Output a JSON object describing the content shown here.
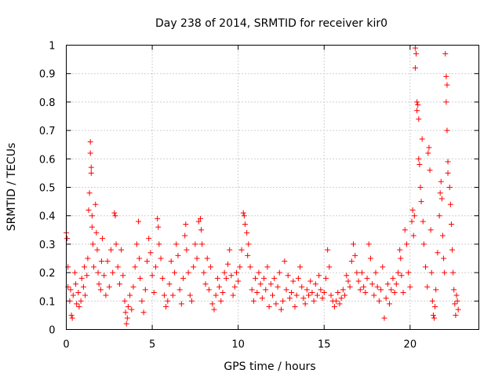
{
  "chart_data": {
    "type": "scatter",
    "title": "Day 238 of 2014, SRMTID for receiver kir0",
    "xlabel": "GPS time / hours",
    "ylabel": "SRMTID / TECUs",
    "xlim": [
      0,
      24
    ],
    "ylim": [
      0,
      1
    ],
    "x_ticks": [
      0,
      5,
      10,
      15,
      20
    ],
    "x_tick_labels": [
      "0",
      "5",
      "10",
      "15",
      "20"
    ],
    "y_ticks": [
      0,
      0.1,
      0.2,
      0.3,
      0.4,
      0.5,
      0.6,
      0.7,
      0.8,
      0.9,
      1
    ],
    "y_tick_labels": [
      "0",
      "0.1",
      "0.2",
      "0.3",
      "0.4",
      "0.5",
      "0.6",
      "0.7",
      "0.8",
      "0.9",
      "1"
    ],
    "grid": true,
    "marker": "+",
    "marker_color": "#ff0000",
    "series": [
      {
        "name": "SRMTID",
        "points": [
          [
            0.0,
            0.34
          ],
          [
            0.05,
            0.32
          ],
          [
            0.1,
            0.22
          ],
          [
            0.1,
            0.15
          ],
          [
            0.2,
            0.1
          ],
          [
            0.25,
            0.14
          ],
          [
            0.3,
            0.05
          ],
          [
            0.35,
            0.04
          ],
          [
            0.4,
            0.12
          ],
          [
            0.5,
            0.2
          ],
          [
            0.55,
            0.16
          ],
          [
            0.6,
            0.09
          ],
          [
            0.7,
            0.13
          ],
          [
            0.75,
            0.08
          ],
          [
            0.85,
            0.1
          ],
          [
            0.9,
            0.18
          ],
          [
            1.0,
            0.15
          ],
          [
            1.05,
            0.22
          ],
          [
            1.1,
            0.12
          ],
          [
            1.2,
            0.19
          ],
          [
            1.25,
            0.25
          ],
          [
            1.3,
            0.42
          ],
          [
            1.35,
            0.48
          ],
          [
            1.4,
            0.66
          ],
          [
            1.4,
            0.62
          ],
          [
            1.45,
            0.57
          ],
          [
            1.45,
            0.55
          ],
          [
            1.5,
            0.4
          ],
          [
            1.5,
            0.36
          ],
          [
            1.55,
            0.3
          ],
          [
            1.6,
            0.22
          ],
          [
            1.7,
            0.44
          ],
          [
            1.75,
            0.34
          ],
          [
            1.8,
            0.28
          ],
          [
            1.85,
            0.2
          ],
          [
            1.9,
            0.16
          ],
          [
            2.0,
            0.14
          ],
          [
            2.05,
            0.24
          ],
          [
            2.1,
            0.32
          ],
          [
            2.2,
            0.19
          ],
          [
            2.3,
            0.12
          ],
          [
            2.4,
            0.24
          ],
          [
            2.5,
            0.15
          ],
          [
            2.6,
            0.28
          ],
          [
            2.7,
            0.2
          ],
          [
            2.8,
            0.41
          ],
          [
            2.85,
            0.4
          ],
          [
            2.9,
            0.3
          ],
          [
            3.0,
            0.22
          ],
          [
            3.1,
            0.16
          ],
          [
            3.2,
            0.28
          ],
          [
            3.3,
            0.19
          ],
          [
            3.4,
            0.1
          ],
          [
            3.45,
            0.06
          ],
          [
            3.5,
            0.02
          ],
          [
            3.55,
            0.04
          ],
          [
            3.6,
            0.08
          ],
          [
            3.7,
            0.12
          ],
          [
            3.8,
            0.07
          ],
          [
            3.9,
            0.15
          ],
          [
            4.0,
            0.22
          ],
          [
            4.1,
            0.3
          ],
          [
            4.2,
            0.38
          ],
          [
            4.25,
            0.25
          ],
          [
            4.3,
            0.18
          ],
          [
            4.4,
            0.1
          ],
          [
            4.5,
            0.06
          ],
          [
            4.6,
            0.14
          ],
          [
            4.7,
            0.24
          ],
          [
            4.8,
            0.32
          ],
          [
            4.9,
            0.27
          ],
          [
            5.0,
            0.19
          ],
          [
            5.1,
            0.13
          ],
          [
            5.2,
            0.22
          ],
          [
            5.3,
            0.39
          ],
          [
            5.35,
            0.36
          ],
          [
            5.4,
            0.3
          ],
          [
            5.5,
            0.25
          ],
          [
            5.6,
            0.18
          ],
          [
            5.7,
            0.12
          ],
          [
            5.8,
            0.08
          ],
          [
            5.9,
            0.1
          ],
          [
            6.0,
            0.16
          ],
          [
            6.1,
            0.24
          ],
          [
            6.2,
            0.12
          ],
          [
            6.3,
            0.2
          ],
          [
            6.4,
            0.3
          ],
          [
            6.5,
            0.26
          ],
          [
            6.6,
            0.14
          ],
          [
            6.7,
            0.09
          ],
          [
            6.8,
            0.18
          ],
          [
            6.9,
            0.33
          ],
          [
            6.95,
            0.37
          ],
          [
            7.0,
            0.28
          ],
          [
            7.1,
            0.2
          ],
          [
            7.2,
            0.12
          ],
          [
            7.3,
            0.1
          ],
          [
            7.4,
            0.22
          ],
          [
            7.5,
            0.3
          ],
          [
            7.6,
            0.25
          ],
          [
            7.7,
            0.38
          ],
          [
            7.8,
            0.39
          ],
          [
            7.85,
            0.35
          ],
          [
            7.9,
            0.3
          ],
          [
            8.0,
            0.2
          ],
          [
            8.1,
            0.16
          ],
          [
            8.2,
            0.25
          ],
          [
            8.3,
            0.14
          ],
          [
            8.4,
            0.22
          ],
          [
            8.5,
            0.09
          ],
          [
            8.6,
            0.07
          ],
          [
            8.7,
            0.12
          ],
          [
            8.8,
            0.18
          ],
          [
            8.9,
            0.15
          ],
          [
            9.0,
            0.1
          ],
          [
            9.1,
            0.13
          ],
          [
            9.2,
            0.2
          ],
          [
            9.3,
            0.18
          ],
          [
            9.4,
            0.23
          ],
          [
            9.5,
            0.28
          ],
          [
            9.6,
            0.19
          ],
          [
            9.7,
            0.12
          ],
          [
            9.8,
            0.15
          ],
          [
            9.9,
            0.2
          ],
          [
            10.0,
            0.17
          ],
          [
            10.1,
            0.22
          ],
          [
            10.2,
            0.28
          ],
          [
            10.3,
            0.41
          ],
          [
            10.35,
            0.4
          ],
          [
            10.4,
            0.37
          ],
          [
            10.5,
            0.34
          ],
          [
            10.55,
            0.26
          ],
          [
            10.6,
            0.3
          ],
          [
            10.7,
            0.22
          ],
          [
            10.8,
            0.14
          ],
          [
            10.9,
            0.1
          ],
          [
            11.0,
            0.18
          ],
          [
            11.1,
            0.13
          ],
          [
            11.2,
            0.2
          ],
          [
            11.3,
            0.16
          ],
          [
            11.4,
            0.11
          ],
          [
            11.5,
            0.18
          ],
          [
            11.6,
            0.14
          ],
          [
            11.7,
            0.22
          ],
          [
            11.8,
            0.08
          ],
          [
            11.9,
            0.16
          ],
          [
            12.0,
            0.12
          ],
          [
            12.1,
            0.18
          ],
          [
            12.2,
            0.09
          ],
          [
            12.3,
            0.15
          ],
          [
            12.4,
            0.2
          ],
          [
            12.5,
            0.07
          ],
          [
            12.6,
            0.1
          ],
          [
            12.7,
            0.24
          ],
          [
            12.8,
            0.14
          ],
          [
            12.9,
            0.19
          ],
          [
            13.0,
            0.11
          ],
          [
            13.1,
            0.13
          ],
          [
            13.2,
            0.17
          ],
          [
            13.3,
            0.08
          ],
          [
            13.4,
            0.12
          ],
          [
            13.5,
            0.18
          ],
          [
            13.6,
            0.22
          ],
          [
            13.7,
            0.15
          ],
          [
            13.8,
            0.11
          ],
          [
            13.9,
            0.09
          ],
          [
            14.0,
            0.14
          ],
          [
            14.1,
            0.12
          ],
          [
            14.2,
            0.17
          ],
          [
            14.3,
            0.13
          ],
          [
            14.4,
            0.1
          ],
          [
            14.5,
            0.16
          ],
          [
            14.6,
            0.12
          ],
          [
            14.7,
            0.19
          ],
          [
            14.8,
            0.14
          ],
          [
            14.9,
            0.11
          ],
          [
            15.0,
            0.13
          ],
          [
            15.1,
            0.18
          ],
          [
            15.2,
            0.28
          ],
          [
            15.3,
            0.22
          ],
          [
            15.4,
            0.12
          ],
          [
            15.5,
            0.1
          ],
          [
            15.6,
            0.08
          ],
          [
            15.7,
            0.1
          ],
          [
            15.8,
            0.13
          ],
          [
            15.9,
            0.09
          ],
          [
            16.0,
            0.11
          ],
          [
            16.1,
            0.14
          ],
          [
            16.2,
            0.12
          ],
          [
            16.3,
            0.19
          ],
          [
            16.4,
            0.17
          ],
          [
            16.5,
            0.15
          ],
          [
            16.6,
            0.24
          ],
          [
            16.7,
            0.3
          ],
          [
            16.8,
            0.26
          ],
          [
            16.9,
            0.2
          ],
          [
            17.0,
            0.17
          ],
          [
            17.1,
            0.14
          ],
          [
            17.2,
            0.2
          ],
          [
            17.3,
            0.15
          ],
          [
            17.4,
            0.13
          ],
          [
            17.5,
            0.18
          ],
          [
            17.6,
            0.3
          ],
          [
            17.7,
            0.25
          ],
          [
            17.8,
            0.16
          ],
          [
            17.9,
            0.12
          ],
          [
            18.0,
            0.2
          ],
          [
            18.1,
            0.15
          ],
          [
            18.2,
            0.1
          ],
          [
            18.3,
            0.14
          ],
          [
            18.4,
            0.22
          ],
          [
            18.5,
            0.04
          ],
          [
            18.6,
            0.11
          ],
          [
            18.7,
            0.16
          ],
          [
            18.8,
            0.09
          ],
          [
            18.9,
            0.14
          ],
          [
            19.0,
            0.18
          ],
          [
            19.1,
            0.13
          ],
          [
            19.2,
            0.16
          ],
          [
            19.3,
            0.2
          ],
          [
            19.4,
            0.28
          ],
          [
            19.45,
            0.25
          ],
          [
            19.5,
            0.19
          ],
          [
            19.6,
            0.13
          ],
          [
            19.7,
            0.35
          ],
          [
            19.8,
            0.3
          ],
          [
            19.9,
            0.2
          ],
          [
            20.0,
            0.15
          ],
          [
            20.1,
            0.38
          ],
          [
            20.15,
            0.42
          ],
          [
            20.2,
            0.33
          ],
          [
            20.25,
            0.4
          ],
          [
            20.3,
            0.99
          ],
          [
            20.35,
            0.97
          ],
          [
            20.3,
            0.92
          ],
          [
            20.4,
            0.8
          ],
          [
            20.45,
            0.79
          ],
          [
            20.4,
            0.77
          ],
          [
            20.5,
            0.74
          ],
          [
            20.5,
            0.6
          ],
          [
            20.55,
            0.58
          ],
          [
            20.6,
            0.5
          ],
          [
            20.65,
            0.45
          ],
          [
            20.7,
            0.67
          ],
          [
            20.75,
            0.38
          ],
          [
            20.8,
            0.3
          ],
          [
            20.9,
            0.22
          ],
          [
            21.0,
            0.15
          ],
          [
            21.05,
            0.62
          ],
          [
            21.1,
            0.64
          ],
          [
            21.15,
            0.56
          ],
          [
            21.2,
            0.35
          ],
          [
            21.25,
            0.2
          ],
          [
            21.3,
            0.1
          ],
          [
            21.35,
            0.05
          ],
          [
            21.4,
            0.04
          ],
          [
            21.45,
            0.08
          ],
          [
            21.5,
            0.14
          ],
          [
            21.6,
            0.27
          ],
          [
            21.7,
            0.4
          ],
          [
            21.75,
            0.48
          ],
          [
            21.8,
            0.52
          ],
          [
            21.85,
            0.46
          ],
          [
            21.9,
            0.33
          ],
          [
            21.95,
            0.25
          ],
          [
            22.0,
            0.2
          ],
          [
            22.05,
            0.97
          ],
          [
            22.1,
            0.89
          ],
          [
            22.15,
            0.86
          ],
          [
            22.1,
            0.8
          ],
          [
            22.15,
            0.7
          ],
          [
            22.2,
            0.59
          ],
          [
            22.2,
            0.55
          ],
          [
            22.3,
            0.5
          ],
          [
            22.35,
            0.44
          ],
          [
            22.4,
            0.37
          ],
          [
            22.45,
            0.28
          ],
          [
            22.5,
            0.2
          ],
          [
            22.55,
            0.14
          ],
          [
            22.6,
            0.09
          ],
          [
            22.65,
            0.05
          ],
          [
            22.7,
            0.12
          ],
          [
            22.75,
            0.1
          ],
          [
            22.8,
            0.07
          ]
        ]
      }
    ]
  }
}
